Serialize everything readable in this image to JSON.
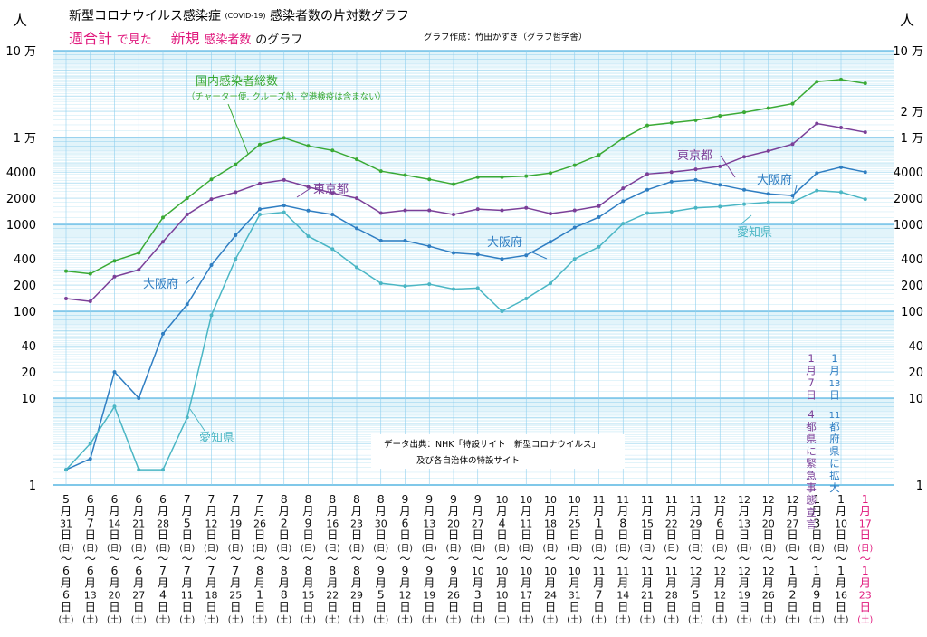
{
  "header": {
    "title": "新型コロナウイルス感染症",
    "title_tag": "(COVID-19)",
    "title_rest": "感染者数の片対数グラフ",
    "sub_a": "週合計",
    "sub_b": "で見た",
    "sub_c": "新規",
    "sub_d": "感染者数",
    "sub_e": "のグラフ",
    "credit": "グラフ作成：竹田かずき（グラフ哲学舎）",
    "unit_left": "人",
    "unit_right": "人"
  },
  "axis": {
    "y_labels_left": [
      "10 万",
      "1 万",
      "4000",
      "2000",
      "1000",
      "400",
      "200",
      "100",
      "40",
      "20",
      "10",
      "1"
    ],
    "y_labels_right": [
      "10 万",
      "2 万",
      "1 万",
      "4000",
      "2000",
      "1000",
      "400",
      "200",
      "100",
      "40",
      "20",
      "10",
      "1"
    ]
  },
  "labels": {
    "national": "国内感染者総数",
    "national_note": "（チャーター便, クルーズ船, 空港検疫は含まない）",
    "tokyo_1": "東京都",
    "tokyo_2": "東京都",
    "osaka_1": "大阪府",
    "osaka_2": "大阪府",
    "osaka_3": "大阪府",
    "aichi_1": "愛知県",
    "aichi_2": "愛知県"
  },
  "source": {
    "line1": "データ出典：NHK「特設サイト　新型コロナウイルス」",
    "line2": "及び各自治体の特設サイト"
  },
  "annotations": {
    "jan7": "1月7日 4都県に緊急事態宣言",
    "jan13": "1月13日 11都府県に拡大"
  },
  "chart_data": {
    "type": "line",
    "title": "新型コロナウイルス感染症(COVID-19)感染者数の片対数グラフ",
    "subtitle": "週合計で見た新規感染者数のグラフ",
    "y_scale": "log",
    "ylim": [
      1,
      100000
    ],
    "categories": [
      [
        "5",
        "月",
        "31",
        "日",
        "(日)",
        "〜",
        "6",
        "月",
        "6",
        "日",
        "(土)"
      ],
      [
        "6",
        "月",
        "7",
        "日",
        "(日)",
        "〜",
        "6",
        "月",
        "13",
        "日",
        "(土)"
      ],
      [
        "6",
        "月",
        "14",
        "日",
        "(日)",
        "〜",
        "6",
        "月",
        "20",
        "日",
        "(土)"
      ],
      [
        "6",
        "月",
        "21",
        "日",
        "(日)",
        "〜",
        "6",
        "月",
        "27",
        "日",
        "(土)"
      ],
      [
        "6",
        "月",
        "28",
        "日",
        "(日)",
        "〜",
        "7",
        "月",
        "4",
        "日",
        "(土)"
      ],
      [
        "7",
        "月",
        "5",
        "日",
        "(日)",
        "〜",
        "7",
        "月",
        "11",
        "日",
        "(土)"
      ],
      [
        "7",
        "月",
        "12",
        "日",
        "(日)",
        "〜",
        "7",
        "月",
        "18",
        "日",
        "(土)"
      ],
      [
        "7",
        "月",
        "19",
        "日",
        "(日)",
        "〜",
        "7",
        "月",
        "25",
        "日",
        "(土)"
      ],
      [
        "7",
        "月",
        "26",
        "日",
        "(日)",
        "〜",
        "8",
        "月",
        "1",
        "日",
        "(土)"
      ],
      [
        "8",
        "月",
        "2",
        "日",
        "(日)",
        "〜",
        "8",
        "月",
        "8",
        "日",
        "(土)"
      ],
      [
        "8",
        "月",
        "9",
        "日",
        "(日)",
        "〜",
        "8",
        "月",
        "15",
        "日",
        "(土)"
      ],
      [
        "8",
        "月",
        "16",
        "日",
        "(日)",
        "〜",
        "8",
        "月",
        "22",
        "日",
        "(土)"
      ],
      [
        "8",
        "月",
        "23",
        "日",
        "(日)",
        "〜",
        "8",
        "月",
        "29",
        "日",
        "(土)"
      ],
      [
        "8",
        "月",
        "30",
        "日",
        "(日)",
        "〜",
        "9",
        "月",
        "5",
        "日",
        "(土)"
      ],
      [
        "9",
        "月",
        "6",
        "日",
        "(日)",
        "〜",
        "9",
        "月",
        "12",
        "日",
        "(土)"
      ],
      [
        "9",
        "月",
        "13",
        "日",
        "(日)",
        "〜",
        "9",
        "月",
        "19",
        "日",
        "(土)"
      ],
      [
        "9",
        "月",
        "20",
        "日",
        "(日)",
        "〜",
        "9",
        "月",
        "26",
        "日",
        "(土)"
      ],
      [
        "9",
        "月",
        "27",
        "日",
        "(日)",
        "〜",
        "10",
        "月",
        "3",
        "日",
        "(土)"
      ],
      [
        "10",
        "月",
        "4",
        "日",
        "(日)",
        "〜",
        "10",
        "月",
        "10",
        "日",
        "(土)"
      ],
      [
        "10",
        "月",
        "11",
        "日",
        "(日)",
        "〜",
        "10",
        "月",
        "17",
        "日",
        "(土)"
      ],
      [
        "10",
        "月",
        "18",
        "日",
        "(日)",
        "〜",
        "10",
        "月",
        "24",
        "日",
        "(土)"
      ],
      [
        "10",
        "月",
        "25",
        "日",
        "(日)",
        "〜",
        "10",
        "月",
        "31",
        "日",
        "(土)"
      ],
      [
        "11",
        "月",
        "1",
        "日",
        "(日)",
        "〜",
        "11",
        "月",
        "7",
        "日",
        "(土)"
      ],
      [
        "11",
        "月",
        "8",
        "日",
        "(日)",
        "〜",
        "11",
        "月",
        "14",
        "日",
        "(土)"
      ],
      [
        "11",
        "月",
        "15",
        "日",
        "(日)",
        "〜",
        "11",
        "月",
        "21",
        "日",
        "(土)"
      ],
      [
        "11",
        "月",
        "22",
        "日",
        "(日)",
        "〜",
        "11",
        "月",
        "28",
        "日",
        "(土)"
      ],
      [
        "11",
        "月",
        "29",
        "日",
        "(日)",
        "〜",
        "12",
        "月",
        "5",
        "日",
        "(土)"
      ],
      [
        "12",
        "月",
        "6",
        "日",
        "(日)",
        "〜",
        "12",
        "月",
        "12",
        "日",
        "(土)"
      ],
      [
        "12",
        "月",
        "13",
        "日",
        "(日)",
        "〜",
        "12",
        "月",
        "19",
        "日",
        "(土)"
      ],
      [
        "12",
        "月",
        "20",
        "日",
        "(日)",
        "〜",
        "12",
        "月",
        "26",
        "日",
        "(土)"
      ],
      [
        "12",
        "月",
        "27",
        "日",
        "(日)",
        "〜",
        "1",
        "月",
        "2",
        "日",
        "(土)"
      ],
      [
        "1",
        "月",
        "3",
        "日",
        "(日)",
        "〜",
        "1",
        "月",
        "9",
        "日",
        "(土)"
      ],
      [
        "1",
        "月",
        "10",
        "日",
        "(日)",
        "〜",
        "1",
        "月",
        "16",
        "日",
        "(土)"
      ],
      [
        "1",
        "月",
        "17",
        "日",
        "(日)",
        "〜",
        "1",
        "月",
        "23",
        "日",
        "(土)"
      ]
    ],
    "series": [
      {
        "name": "国内感染者総数",
        "color": "#3aaa35",
        "values": [
          290,
          270,
          380,
          470,
          1200,
          2000,
          3300,
          4900,
          8300,
          9900,
          8000,
          7100,
          5600,
          4100,
          3700,
          3300,
          2900,
          3500,
          3500,
          3600,
          3900,
          4800,
          6300,
          9800,
          13800,
          14800,
          15800,
          17800,
          19500,
          21800,
          24500,
          44000,
          46500,
          42000
        ]
      },
      {
        "name": "東京都",
        "color": "#7b3f98",
        "values": [
          140,
          130,
          250,
          300,
          630,
          1300,
          1950,
          2350,
          2950,
          3250,
          2700,
          2300,
          2000,
          1350,
          1450,
          1450,
          1300,
          1500,
          1450,
          1550,
          1330,
          1450,
          1620,
          2600,
          3800,
          4000,
          4300,
          4650,
          6000,
          7000,
          8400,
          14500,
          13000,
          11500
        ]
      },
      {
        "name": "大阪府",
        "color": "#2f7ec2",
        "values": [
          1.5,
          2,
          20,
          10,
          55,
          120,
          340,
          750,
          1500,
          1650,
          1440,
          1300,
          900,
          650,
          650,
          560,
          470,
          450,
          400,
          440,
          630,
          920,
          1210,
          1850,
          2500,
          3100,
          3250,
          2850,
          2500,
          2250,
          2150,
          3900,
          4550,
          4000
        ]
      },
      {
        "name": "愛知県",
        "color": "#4ab6c4",
        "values": [
          1.5,
          3,
          8,
          1.5,
          1.5,
          6,
          90,
          400,
          1300,
          1380,
          730,
          520,
          320,
          210,
          195,
          205,
          180,
          185,
          100,
          140,
          210,
          400,
          550,
          1020,
          1350,
          1400,
          1550,
          1600,
          1710,
          1800,
          1800,
          2450,
          2350,
          1950
        ]
      }
    ]
  }
}
